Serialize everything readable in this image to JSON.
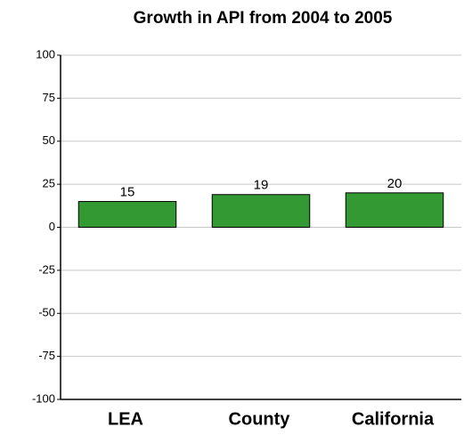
{
  "chart_data": {
    "type": "bar",
    "title": "Growth in API from 2004 to 2005",
    "categories": [
      "LEA",
      "County",
      "California"
    ],
    "values": [
      15,
      19,
      20
    ],
    "color": "#339933",
    "ylim": [
      -100,
      100
    ],
    "yticks": [
      -100,
      -75,
      -50,
      -25,
      0,
      25,
      50,
      75,
      100
    ],
    "grid": true
  }
}
